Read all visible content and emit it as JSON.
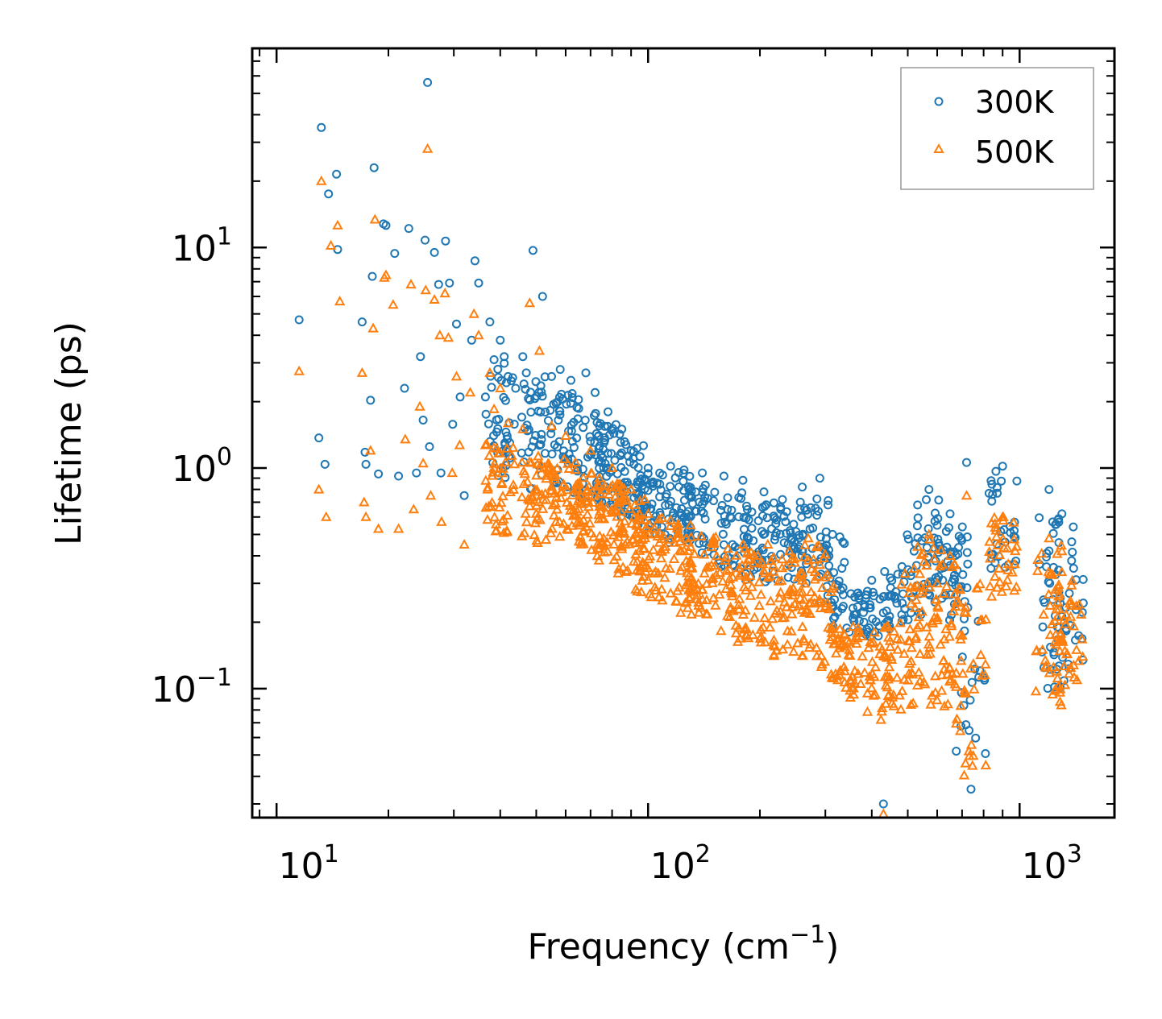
{
  "chart_data": {
    "type": "scatter",
    "xscale": "log",
    "yscale": "log",
    "xlabel": {
      "text": "Frequency (cm",
      "sup": "−1",
      "suffix": ")"
    },
    "ylabel": "Lifetime (ps)",
    "xlim": [
      8.6,
      1800
    ],
    "ylim": [
      0.026,
      80
    ],
    "xticks": [
      {
        "value": 10,
        "base": "10",
        "exp": "1"
      },
      {
        "value": 100,
        "base": "10",
        "exp": "2"
      },
      {
        "value": 1000,
        "base": "10",
        "exp": "3"
      }
    ],
    "yticks": [
      {
        "value": 0.1,
        "base": "10",
        "exp": "−1"
      },
      {
        "value": 1,
        "base": "10",
        "exp": "0"
      },
      {
        "value": 10,
        "base": "10",
        "exp": "1"
      }
    ],
    "legend_position": "top-right",
    "series": [
      {
        "name": "300K",
        "marker": "circle",
        "color": "#1f77b4",
        "points": [
          [
            11.5,
            4.7
          ],
          [
            13,
            1.37
          ],
          [
            13.2,
            35
          ],
          [
            13.5,
            1.04
          ],
          [
            13.8,
            17.5
          ],
          [
            14.5,
            21.5
          ],
          [
            14.6,
            9.8
          ],
          [
            17,
            4.6
          ],
          [
            17.3,
            1.18
          ],
          [
            17.4,
            1.04
          ],
          [
            17.9,
            2.03
          ],
          [
            18.1,
            7.4
          ],
          [
            18.3,
            23
          ],
          [
            18.8,
            0.94
          ],
          [
            19.4,
            12.8
          ],
          [
            19.7,
            12.6
          ],
          [
            20.8,
            9.4
          ],
          [
            21.3,
            0.92
          ],
          [
            22.1,
            2.3
          ],
          [
            22.7,
            12.2
          ],
          [
            23.8,
            0.95
          ],
          [
            24.4,
            3.2
          ],
          [
            24.8,
            1.65
          ],
          [
            25.1,
            10.8
          ],
          [
            25.5,
            56
          ],
          [
            25.8,
            1.25
          ],
          [
            26.6,
            9.5
          ],
          [
            27.3,
            6.8
          ],
          [
            27.7,
            0.95
          ],
          [
            28.5,
            10.7
          ],
          [
            29.2,
            6.9
          ],
          [
            29.8,
            1.58
          ],
          [
            30.5,
            4.5
          ],
          [
            31.2,
            2.1
          ],
          [
            32,
            0.75
          ],
          [
            33.5,
            3.8
          ],
          [
            34.2,
            8.7
          ],
          [
            35,
            6.9
          ],
          [
            36.5,
            2.1
          ],
          [
            37.5,
            4.6
          ],
          [
            38.5,
            3.1
          ],
          [
            40,
            3.8
          ],
          [
            41,
            3.2
          ],
          [
            42,
            2.6
          ],
          [
            44,
            2.3
          ],
          [
            46,
            3.2
          ],
          [
            47,
            2.7
          ],
          [
            49,
            9.7
          ],
          [
            52,
            6.0
          ],
          [
            55,
            2.6
          ],
          [
            58,
            2.8
          ],
          [
            62,
            2.5
          ],
          [
            68,
            2.7
          ],
          [
            72,
            2.2
          ],
          [
            78,
            1.8
          ],
          [
            85,
            1.5
          ],
          [
            90,
            1.2
          ],
          [
            100,
            1.0
          ],
          [
            115,
            1.02
          ],
          [
            125,
            0.98
          ],
          [
            140,
            0.95
          ],
          [
            160,
            0.92
          ],
          [
            180,
            0.88
          ],
          [
            205,
            0.78
          ],
          [
            230,
            0.72
          ],
          [
            260,
            0.82
          ],
          [
            290,
            0.9
          ],
          [
            305,
            0.68
          ],
          [
            330,
            0.28
          ],
          [
            360,
            0.26
          ],
          [
            400,
            0.31
          ],
          [
            430,
            0.03
          ],
          [
            470,
            0.33
          ],
          [
            520,
            0.42
          ],
          [
            570,
            0.8
          ],
          [
            600,
            0.55
          ],
          [
            650,
            0.62
          ],
          [
            720,
            1.06
          ],
          [
            740,
            0.035
          ],
          [
            900,
            1.02
          ],
          [
            1200,
            0.8
          ],
          [
            1300,
            0.62
          ],
          [
            1380,
            0.38
          ]
        ],
        "bands": [
          [
            40,
            0.9,
            3.0,
            40
          ],
          [
            50,
            0.8,
            2.6,
            40
          ],
          [
            60,
            0.75,
            2.2,
            45
          ],
          [
            70,
            0.7,
            1.9,
            45
          ],
          [
            80,
            0.65,
            1.6,
            45
          ],
          [
            90,
            0.6,
            1.3,
            40
          ],
          [
            100,
            0.5,
            0.95,
            45
          ],
          [
            120,
            0.45,
            0.98,
            45
          ],
          [
            140,
            0.4,
            0.88,
            40
          ],
          [
            170,
            0.35,
            0.8,
            40
          ],
          [
            200,
            0.3,
            0.72,
            40
          ],
          [
            240,
            0.3,
            0.68,
            40
          ],
          [
            280,
            0.3,
            0.75,
            35
          ],
          [
            310,
            0.22,
            0.55,
            25
          ],
          [
            340,
            0.18,
            0.3,
            20
          ],
          [
            380,
            0.18,
            0.28,
            20
          ],
          [
            420,
            0.17,
            0.3,
            20
          ],
          [
            470,
            0.2,
            0.35,
            20
          ],
          [
            520,
            0.2,
            0.5,
            25
          ],
          [
            570,
            0.3,
            0.8,
            25
          ],
          [
            620,
            0.2,
            0.52,
            20
          ],
          [
            660,
            0.2,
            0.6,
            20
          ],
          [
            740,
            0.05,
            0.5,
            25
          ],
          [
            900,
            0.35,
            1.0,
            30
          ],
          [
            1200,
            0.12,
            0.6,
            20
          ],
          [
            1280,
            0.1,
            0.62,
            25
          ],
          [
            1360,
            0.12,
            0.38,
            20
          ]
        ]
      },
      {
        "name": "500K",
        "marker": "triangle",
        "color": "#ff7f0e",
        "points": [
          [
            11.5,
            2.75
          ],
          [
            13,
            0.8
          ],
          [
            13.2,
            20
          ],
          [
            13.6,
            0.6
          ],
          [
            14,
            10.2
          ],
          [
            14.6,
            12.6
          ],
          [
            14.8,
            5.7
          ],
          [
            17,
            2.7
          ],
          [
            17.2,
            0.7
          ],
          [
            17.4,
            0.6
          ],
          [
            17.9,
            1.2
          ],
          [
            18.2,
            4.3
          ],
          [
            18.4,
            13.4
          ],
          [
            18.8,
            0.53
          ],
          [
            19.5,
            7.3
          ],
          [
            19.7,
            7.5
          ],
          [
            20.6,
            5.5
          ],
          [
            21.3,
            0.53
          ],
          [
            22.2,
            1.35
          ],
          [
            23,
            6.8
          ],
          [
            23.4,
            0.65
          ],
          [
            24.3,
            1.9
          ],
          [
            24.8,
            1.05
          ],
          [
            25.2,
            6.4
          ],
          [
            25.5,
            28
          ],
          [
            26,
            0.75
          ],
          [
            26.6,
            5.8
          ],
          [
            27.5,
            4.0
          ],
          [
            27.8,
            0.57
          ],
          [
            28.4,
            6.2
          ],
          [
            29,
            3.9
          ],
          [
            29.7,
            0.95
          ],
          [
            30.5,
            2.6
          ],
          [
            31.1,
            1.27
          ],
          [
            32,
            0.45
          ],
          [
            33.2,
            2.2
          ],
          [
            34,
            5.0
          ],
          [
            35,
            4.0
          ],
          [
            36.5,
            1.27
          ],
          [
            37.5,
            2.7
          ],
          [
            38.5,
            1.85
          ],
          [
            40,
            2.3
          ],
          [
            42,
            1.6
          ],
          [
            46,
            1.5
          ],
          [
            48,
            5.6
          ],
          [
            51,
            3.4
          ],
          [
            55,
            1.55
          ],
          [
            60,
            1.4
          ],
          [
            70,
            1.2
          ],
          [
            80,
            1.0
          ],
          [
            90,
            0.8
          ],
          [
            100,
            0.62
          ],
          [
            115,
            0.58
          ],
          [
            130,
            0.55
          ],
          [
            150,
            0.48
          ],
          [
            180,
            0.45
          ],
          [
            210,
            0.45
          ],
          [
            240,
            0.42
          ],
          [
            270,
            0.48
          ],
          [
            300,
            0.32
          ],
          [
            330,
            0.12
          ],
          [
            360,
            0.12
          ],
          [
            400,
            0.16
          ],
          [
            430,
            0.027
          ],
          [
            470,
            0.15
          ],
          [
            520,
            0.35
          ],
          [
            570,
            0.5
          ],
          [
            600,
            0.3
          ],
          [
            650,
            0.4
          ],
          [
            720,
            0.75
          ],
          [
            730,
            0.052
          ],
          [
            900,
            0.6
          ],
          [
            1200,
            0.48
          ],
          [
            1300,
            0.42
          ],
          [
            1370,
            0.25
          ]
        ],
        "bands": [
          [
            40,
            0.5,
            1.3,
            45
          ],
          [
            50,
            0.45,
            1.2,
            50
          ],
          [
            60,
            0.45,
            1.1,
            50
          ],
          [
            70,
            0.42,
            0.95,
            50
          ],
          [
            80,
            0.38,
            0.85,
            50
          ],
          [
            90,
            0.33,
            0.75,
            45
          ],
          [
            100,
            0.25,
            0.6,
            50
          ],
          [
            120,
            0.22,
            0.56,
            50
          ],
          [
            140,
            0.2,
            0.5,
            45
          ],
          [
            170,
            0.16,
            0.45,
            45
          ],
          [
            200,
            0.14,
            0.42,
            45
          ],
          [
            240,
            0.14,
            0.4,
            45
          ],
          [
            280,
            0.14,
            0.45,
            40
          ],
          [
            310,
            0.11,
            0.3,
            30
          ],
          [
            340,
            0.1,
            0.2,
            25
          ],
          [
            380,
            0.09,
            0.18,
            25
          ],
          [
            420,
            0.07,
            0.17,
            25
          ],
          [
            470,
            0.08,
            0.2,
            25
          ],
          [
            520,
            0.08,
            0.35,
            30
          ],
          [
            570,
            0.1,
            0.48,
            30
          ],
          [
            620,
            0.08,
            0.28,
            25
          ],
          [
            660,
            0.08,
            0.38,
            25
          ],
          [
            740,
            0.04,
            0.3,
            30
          ],
          [
            900,
            0.25,
            0.6,
            35
          ],
          [
            1200,
            0.09,
            0.45,
            25
          ],
          [
            1280,
            0.08,
            0.42,
            30
          ],
          [
            1360,
            0.09,
            0.25,
            25
          ]
        ]
      }
    ]
  }
}
